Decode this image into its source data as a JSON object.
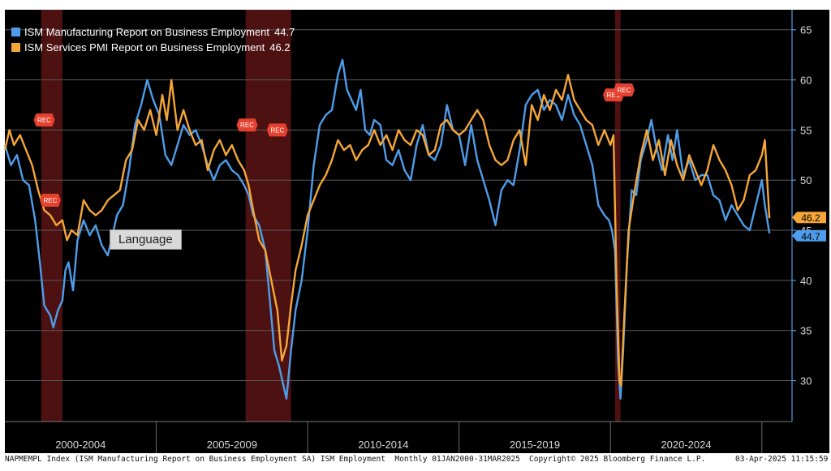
{
  "legend": [
    {
      "label": "ISM Manufacturing Report on Business Employment",
      "value": "44.7",
      "color": "#4f9dea"
    },
    {
      "label": "ISM Services PMI Report on Business Employment",
      "value": "46.2",
      "color": "#f5a637"
    }
  ],
  "tooltip": "Language",
  "footer": {
    "left": "NAPMEMPL Index (ISM Manufacturing Report on Business Employment SA) ISM Employment  Monthly 01JAN2000-31MAR2025",
    "middle": "Copyright© 2025 Bloomberg Finance L.P.",
    "right": "03-Apr-2025 11:15:59"
  },
  "recession_label": "REC",
  "chart_data": {
    "type": "line",
    "title": "",
    "x_range": [
      "2000-01",
      "2025-03"
    ],
    "ylim": [
      26,
      67
    ],
    "y_ticks": [
      30,
      35,
      40,
      45,
      50,
      55,
      60,
      65
    ],
    "x_period_labels": [
      "2000-2004",
      "2005-2009",
      "2010-2014",
      "2015-2019",
      "2020-2024"
    ],
    "recessions": [
      {
        "start": 2001.2,
        "end": 2001.9
      },
      {
        "start": 2007.95,
        "end": 2009.45
      },
      {
        "start": 2020.15,
        "end": 2020.33
      }
    ],
    "rec_flags": [
      {
        "x": 2001.3,
        "y": 56.0
      },
      {
        "x": 2001.5,
        "y": 48.0
      },
      {
        "x": 2008.0,
        "y": 55.5
      },
      {
        "x": 2009.0,
        "y": 55.0
      },
      {
        "x": 2020.1,
        "y": 58.5
      },
      {
        "x": 2020.45,
        "y": 59.0
      }
    ],
    "last_values": {
      "manufacturing": 44.7,
      "services": 46.2
    },
    "series": [
      {
        "name": "ISM Manufacturing Report on Business Employment",
        "color": "#4f9dea",
        "points": [
          [
            2000.0,
            53.5
          ],
          [
            2000.2,
            51.5
          ],
          [
            2000.4,
            52.5
          ],
          [
            2000.6,
            50.0
          ],
          [
            2000.8,
            49.5
          ],
          [
            2001.0,
            46.0
          ],
          [
            2001.15,
            42.0
          ],
          [
            2001.3,
            37.5
          ],
          [
            2001.5,
            36.5
          ],
          [
            2001.6,
            35.3
          ],
          [
            2001.75,
            37.0
          ],
          [
            2001.9,
            38.0
          ],
          [
            2002.0,
            41.0
          ],
          [
            2002.1,
            41.8
          ],
          [
            2002.25,
            39.0
          ],
          [
            2002.4,
            44.0
          ],
          [
            2002.6,
            46.0
          ],
          [
            2002.8,
            44.5
          ],
          [
            2003.0,
            45.5
          ],
          [
            2003.2,
            43.5
          ],
          [
            2003.4,
            42.5
          ],
          [
            2003.55,
            44.5
          ],
          [
            2003.7,
            46.5
          ],
          [
            2003.9,
            47.5
          ],
          [
            2004.1,
            51.0
          ],
          [
            2004.3,
            55.5
          ],
          [
            2004.5,
            57.5
          ],
          [
            2004.7,
            60.0
          ],
          [
            2004.9,
            58.0
          ],
          [
            2005.1,
            56.5
          ],
          [
            2005.3,
            52.5
          ],
          [
            2005.5,
            51.5
          ],
          [
            2005.7,
            53.5
          ],
          [
            2005.9,
            55.5
          ],
          [
            2006.1,
            54.5
          ],
          [
            2006.3,
            55.0
          ],
          [
            2006.5,
            53.5
          ],
          [
            2006.7,
            51.5
          ],
          [
            2006.9,
            50.0
          ],
          [
            2007.1,
            51.5
          ],
          [
            2007.3,
            52.0
          ],
          [
            2007.5,
            51.0
          ],
          [
            2007.7,
            50.5
          ],
          [
            2007.9,
            49.5
          ],
          [
            2008.05,
            48.5
          ],
          [
            2008.2,
            46.5
          ],
          [
            2008.4,
            45.5
          ],
          [
            2008.6,
            43.0
          ],
          [
            2008.75,
            38.0
          ],
          [
            2008.9,
            33.0
          ],
          [
            2009.05,
            31.5
          ],
          [
            2009.2,
            29.5
          ],
          [
            2009.3,
            28.2
          ],
          [
            2009.45,
            33.0
          ],
          [
            2009.6,
            37.0
          ],
          [
            2009.8,
            40.0
          ],
          [
            2010.0,
            45.0
          ],
          [
            2010.2,
            51.5
          ],
          [
            2010.4,
            55.5
          ],
          [
            2010.6,
            56.5
          ],
          [
            2010.8,
            57.0
          ],
          [
            2011.0,
            60.5
          ],
          [
            2011.15,
            62.0
          ],
          [
            2011.3,
            59.0
          ],
          [
            2011.45,
            58.0
          ],
          [
            2011.6,
            57.0
          ],
          [
            2011.75,
            59.0
          ],
          [
            2011.9,
            55.0
          ],
          [
            2012.05,
            54.5
          ],
          [
            2012.2,
            56.0
          ],
          [
            2012.4,
            55.5
          ],
          [
            2012.6,
            52.0
          ],
          [
            2012.8,
            51.5
          ],
          [
            2013.0,
            53.0
          ],
          [
            2013.2,
            51.0
          ],
          [
            2013.4,
            50.0
          ],
          [
            2013.6,
            53.5
          ],
          [
            2013.8,
            55.5
          ],
          [
            2014.0,
            52.5
          ],
          [
            2014.2,
            52.0
          ],
          [
            2014.4,
            53.5
          ],
          [
            2014.6,
            57.5
          ],
          [
            2014.8,
            55.0
          ],
          [
            2015.0,
            54.5
          ],
          [
            2015.2,
            51.5
          ],
          [
            2015.4,
            55.5
          ],
          [
            2015.6,
            52.0
          ],
          [
            2015.8,
            50.0
          ],
          [
            2016.0,
            48.0
          ],
          [
            2016.2,
            45.5
          ],
          [
            2016.4,
            49.0
          ],
          [
            2016.6,
            50.0
          ],
          [
            2016.8,
            49.5
          ],
          [
            2017.0,
            53.0
          ],
          [
            2017.2,
            57.5
          ],
          [
            2017.4,
            58.5
          ],
          [
            2017.6,
            59.0
          ],
          [
            2017.8,
            57.0
          ],
          [
            2018.0,
            58.0
          ],
          [
            2018.2,
            57.5
          ],
          [
            2018.4,
            56.0
          ],
          [
            2018.6,
            58.5
          ],
          [
            2018.8,
            56.5
          ],
          [
            2019.0,
            55.5
          ],
          [
            2019.2,
            53.5
          ],
          [
            2019.4,
            51.5
          ],
          [
            2019.6,
            47.5
          ],
          [
            2019.8,
            46.5
          ],
          [
            2019.95,
            46.0
          ],
          [
            2020.05,
            45.0
          ],
          [
            2020.15,
            43.0
          ],
          [
            2020.25,
            32.0
          ],
          [
            2020.33,
            28.2
          ],
          [
            2020.42,
            33.0
          ],
          [
            2020.55,
            42.0
          ],
          [
            2020.7,
            49.0
          ],
          [
            2020.85,
            48.5
          ],
          [
            2021.0,
            52.0
          ],
          [
            2021.2,
            54.0
          ],
          [
            2021.35,
            56.0
          ],
          [
            2021.5,
            53.5
          ],
          [
            2021.7,
            51.0
          ],
          [
            2021.9,
            54.5
          ],
          [
            2022.05,
            52.0
          ],
          [
            2022.2,
            55.0
          ],
          [
            2022.4,
            50.5
          ],
          [
            2022.6,
            52.0
          ],
          [
            2022.8,
            50.0
          ],
          [
            2023.0,
            50.5
          ],
          [
            2023.2,
            50.5
          ],
          [
            2023.4,
            48.5
          ],
          [
            2023.6,
            48.0
          ],
          [
            2023.8,
            46.0
          ],
          [
            2024.0,
            47.5
          ],
          [
            2024.2,
            46.5
          ],
          [
            2024.4,
            45.5
          ],
          [
            2024.6,
            45.0
          ],
          [
            2024.8,
            47.5
          ],
          [
            2025.0,
            50.0
          ],
          [
            2025.1,
            47.5
          ],
          [
            2025.25,
            44.7
          ]
        ]
      },
      {
        "name": "ISM Services PMI Report on Business Employment",
        "color": "#f5a637",
        "points": [
          [
            2000.0,
            53.0
          ],
          [
            2000.15,
            55.0
          ],
          [
            2000.3,
            53.5
          ],
          [
            2000.5,
            54.5
          ],
          [
            2000.7,
            53.0
          ],
          [
            2000.9,
            51.5
          ],
          [
            2001.1,
            49.0
          ],
          [
            2001.3,
            47.0
          ],
          [
            2001.5,
            46.5
          ],
          [
            2001.7,
            45.5
          ],
          [
            2001.9,
            46.0
          ],
          [
            2002.05,
            44.0
          ],
          [
            2002.2,
            45.0
          ],
          [
            2002.4,
            44.5
          ],
          [
            2002.6,
            48.0
          ],
          [
            2002.8,
            47.0
          ],
          [
            2003.0,
            46.5
          ],
          [
            2003.2,
            47.0
          ],
          [
            2003.4,
            48.0
          ],
          [
            2003.6,
            48.5
          ],
          [
            2003.8,
            49.0
          ],
          [
            2004.0,
            52.0
          ],
          [
            2004.2,
            53.0
          ],
          [
            2004.4,
            56.0
          ],
          [
            2004.6,
            55.0
          ],
          [
            2004.8,
            57.0
          ],
          [
            2005.0,
            54.5
          ],
          [
            2005.2,
            58.5
          ],
          [
            2005.35,
            56.0
          ],
          [
            2005.5,
            60.0
          ],
          [
            2005.7,
            55.0
          ],
          [
            2005.9,
            57.0
          ],
          [
            2006.1,
            55.0
          ],
          [
            2006.3,
            53.5
          ],
          [
            2006.5,
            54.0
          ],
          [
            2006.7,
            51.0
          ],
          [
            2006.9,
            53.0
          ],
          [
            2007.1,
            54.0
          ],
          [
            2007.3,
            52.5
          ],
          [
            2007.5,
            53.5
          ],
          [
            2007.7,
            52.0
          ],
          [
            2007.9,
            51.0
          ],
          [
            2008.05,
            49.5
          ],
          [
            2008.2,
            47.0
          ],
          [
            2008.4,
            44.0
          ],
          [
            2008.6,
            43.0
          ],
          [
            2008.8,
            40.0
          ],
          [
            2009.0,
            37.0
          ],
          [
            2009.15,
            32.0
          ],
          [
            2009.3,
            33.5
          ],
          [
            2009.45,
            37.5
          ],
          [
            2009.6,
            41.0
          ],
          [
            2009.8,
            43.5
          ],
          [
            2010.0,
            46.5
          ],
          [
            2010.2,
            48.0
          ],
          [
            2010.4,
            49.5
          ],
          [
            2010.6,
            50.5
          ],
          [
            2010.8,
            52.0
          ],
          [
            2011.0,
            54.0
          ],
          [
            2011.2,
            53.0
          ],
          [
            2011.4,
            53.5
          ],
          [
            2011.6,
            52.0
          ],
          [
            2011.8,
            53.0
          ],
          [
            2012.0,
            53.5
          ],
          [
            2012.2,
            55.0
          ],
          [
            2012.4,
            53.5
          ],
          [
            2012.6,
            54.5
          ],
          [
            2012.8,
            53.0
          ],
          [
            2013.0,
            55.0
          ],
          [
            2013.2,
            54.0
          ],
          [
            2013.4,
            53.5
          ],
          [
            2013.6,
            55.0
          ],
          [
            2013.8,
            54.5
          ],
          [
            2014.0,
            52.5
          ],
          [
            2014.2,
            53.0
          ],
          [
            2014.4,
            55.5
          ],
          [
            2014.6,
            56.0
          ],
          [
            2014.8,
            55.0
          ],
          [
            2015.0,
            54.5
          ],
          [
            2015.2,
            55.0
          ],
          [
            2015.4,
            56.0
          ],
          [
            2015.6,
            57.0
          ],
          [
            2015.8,
            56.0
          ],
          [
            2016.0,
            53.5
          ],
          [
            2016.2,
            52.0
          ],
          [
            2016.4,
            51.5
          ],
          [
            2016.6,
            52.0
          ],
          [
            2016.8,
            54.0
          ],
          [
            2017.0,
            55.0
          ],
          [
            2017.2,
            51.5
          ],
          [
            2017.4,
            57.5
          ],
          [
            2017.6,
            56.0
          ],
          [
            2017.8,
            58.5
          ],
          [
            2018.0,
            57.0
          ],
          [
            2018.2,
            59.0
          ],
          [
            2018.4,
            58.0
          ],
          [
            2018.6,
            60.5
          ],
          [
            2018.8,
            58.0
          ],
          [
            2019.0,
            57.0
          ],
          [
            2019.2,
            56.0
          ],
          [
            2019.4,
            55.5
          ],
          [
            2019.6,
            53.5
          ],
          [
            2019.8,
            55.0
          ],
          [
            2020.0,
            53.5
          ],
          [
            2020.1,
            54.5
          ],
          [
            2020.2,
            40.0
          ],
          [
            2020.3,
            30.0
          ],
          [
            2020.35,
            29.5
          ],
          [
            2020.45,
            36.0
          ],
          [
            2020.6,
            45.0
          ],
          [
            2020.8,
            49.0
          ],
          [
            2021.0,
            52.5
          ],
          [
            2021.2,
            55.0
          ],
          [
            2021.4,
            52.0
          ],
          [
            2021.6,
            54.0
          ],
          [
            2021.8,
            50.5
          ],
          [
            2022.0,
            54.0
          ],
          [
            2022.2,
            51.5
          ],
          [
            2022.4,
            50.0
          ],
          [
            2022.6,
            52.5
          ],
          [
            2022.8,
            51.0
          ],
          [
            2023.0,
            49.5
          ],
          [
            2023.2,
            51.0
          ],
          [
            2023.4,
            53.5
          ],
          [
            2023.6,
            52.0
          ],
          [
            2023.8,
            51.0
          ],
          [
            2024.0,
            49.5
          ],
          [
            2024.2,
            47.0
          ],
          [
            2024.4,
            48.0
          ],
          [
            2024.6,
            50.5
          ],
          [
            2024.8,
            51.0
          ],
          [
            2025.0,
            52.5
          ],
          [
            2025.1,
            54.0
          ],
          [
            2025.25,
            46.2
          ]
        ]
      }
    ]
  }
}
